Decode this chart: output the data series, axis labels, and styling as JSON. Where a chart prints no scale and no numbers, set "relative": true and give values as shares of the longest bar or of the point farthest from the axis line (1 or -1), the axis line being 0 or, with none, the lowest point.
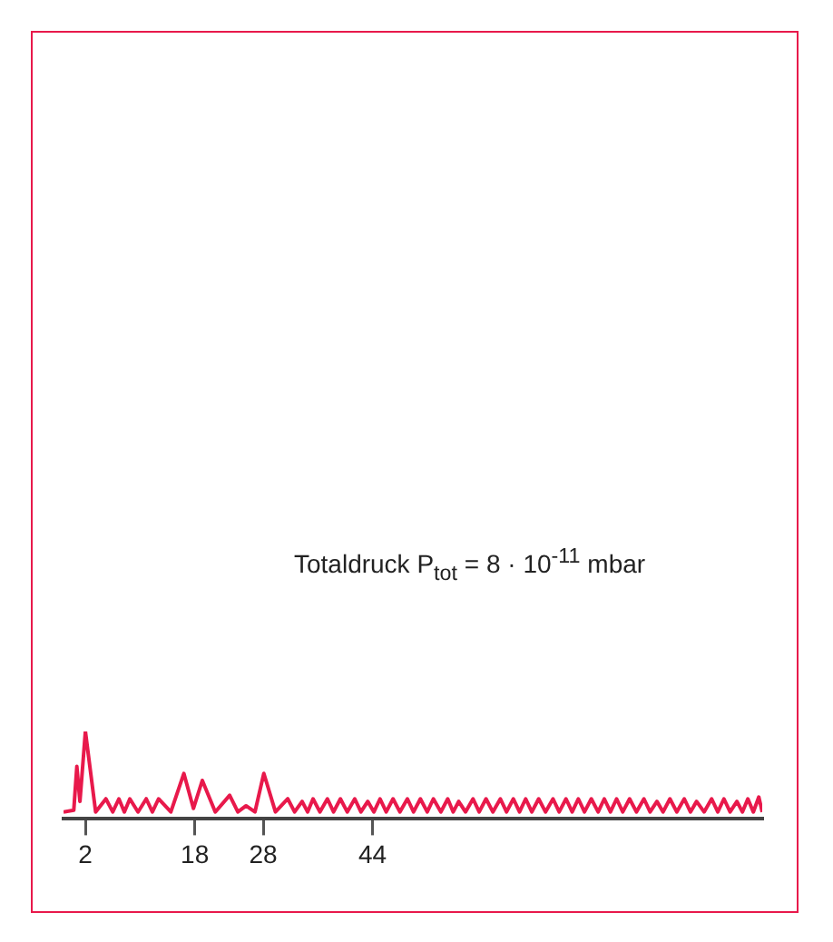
{
  "chart_data": {
    "type": "line",
    "relative": true,
    "x": [
      -1.2,
      0.3,
      0.75,
      1.2,
      2,
      3.5,
      5,
      6,
      6.9,
      7.7,
      8.5,
      9.7,
      10.9,
      11.8,
      12.7,
      14.5,
      16.4,
      17.8,
      19.1,
      21,
      23.1,
      24.3,
      25.5,
      26.8,
      28.1,
      29.8,
      31.6,
      32.6,
      33.7,
      34.5,
      35.3,
      36.3,
      37.4,
      38.3,
      39.3,
      40.3,
      41.4,
      42.3,
      43.3,
      44.2,
      45.1,
      46,
      47,
      48,
      49.1,
      50,
      51,
      52,
      52.9,
      54,
      55,
      55.8,
      56.6,
      57.6,
      58.7,
      59.6,
      60.6,
      61.6,
      62.7,
      63.6,
      64.6,
      65.5,
      66.4,
      67.3,
      68.3,
      69.3,
      70.4,
      71.3,
      72.3,
      73.2,
      74.1,
      75,
      76,
      77,
      77.9,
      78.8,
      79.7,
      80.6,
      81.6,
      82.6,
      83.7,
      84.6,
      85.6,
      86.5,
      87.5,
      88.5,
      89.6,
      90.5,
      91.4,
      92.5,
      93.6,
      94.5,
      95.4,
      96.3,
      97.3,
      98.1,
      98.9,
      99.7,
      100.5,
      101
    ],
    "series": [
      {
        "color": "#e8194b",
        "values": [
          0.08,
          0.1,
          0.6,
          0.2,
          1,
          0.08,
          0.23,
          0.08,
          0.23,
          0.08,
          0.23,
          0.08,
          0.23,
          0.08,
          0.23,
          0.08,
          0.52,
          0.12,
          0.44,
          0.08,
          0.27,
          0.08,
          0.15,
          0.08,
          0.52,
          0.08,
          0.23,
          0.08,
          0.2,
          0.08,
          0.23,
          0.08,
          0.23,
          0.08,
          0.23,
          0.08,
          0.23,
          0.08,
          0.2,
          0.08,
          0.23,
          0.08,
          0.23,
          0.08,
          0.23,
          0.08,
          0.23,
          0.08,
          0.23,
          0.08,
          0.23,
          0.08,
          0.2,
          0.08,
          0.23,
          0.08,
          0.23,
          0.08,
          0.23,
          0.08,
          0.23,
          0.08,
          0.23,
          0.08,
          0.23,
          0.08,
          0.23,
          0.08,
          0.23,
          0.08,
          0.23,
          0.08,
          0.23,
          0.08,
          0.23,
          0.08,
          0.23,
          0.08,
          0.23,
          0.08,
          0.23,
          0.08,
          0.2,
          0.08,
          0.23,
          0.08,
          0.23,
          0.08,
          0.2,
          0.08,
          0.23,
          0.08,
          0.23,
          0.08,
          0.2,
          0.08,
          0.23,
          0.08,
          0.25,
          0.08
        ]
      }
    ],
    "xlim": [
      -1.2,
      101
    ],
    "xticks": [
      2,
      18,
      28,
      44
    ],
    "annotations": [
      "Totaldruck P$_{tot}$  = 8 · 10$^{-11}$ mbar"
    ]
  }
}
